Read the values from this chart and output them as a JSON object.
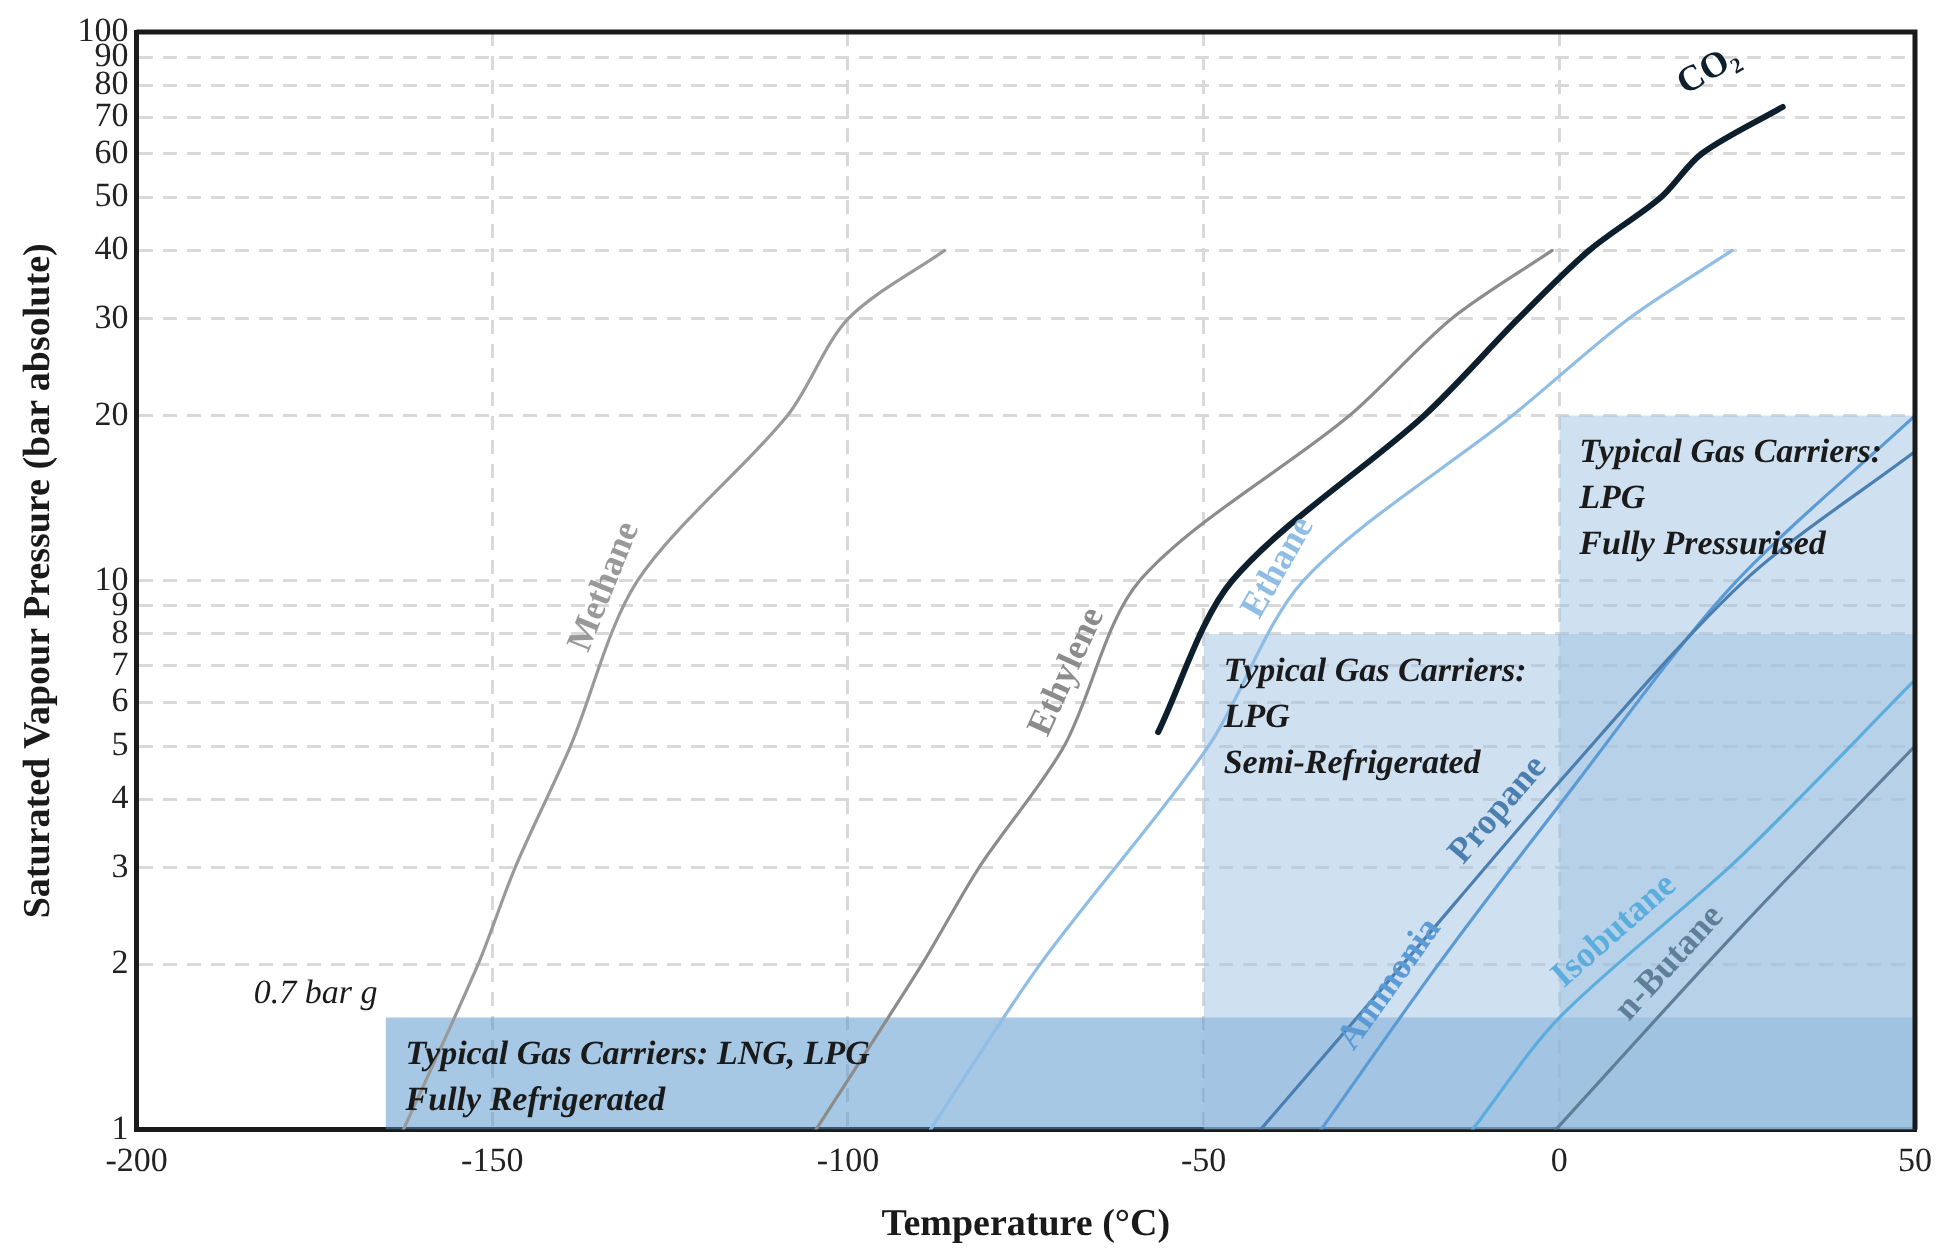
{
  "chart_data": {
    "type": "line",
    "xlabel": "Temperature (°C)",
    "ylabel": "Saturated Vapour Pressure (bar absolute)",
    "xlim": [
      -200,
      50
    ],
    "xticks": [
      -200,
      -150,
      -100,
      -50,
      0,
      50
    ],
    "ylim": [
      1,
      100
    ],
    "yticks": [
      1,
      2,
      3,
      4,
      5,
      6,
      7,
      8,
      9,
      10,
      20,
      30,
      40,
      50,
      60,
      70,
      80,
      90,
      100
    ],
    "log": "y",
    "grid": true,
    "legend": false,
    "marker": "none",
    "line_style": "solid",
    "series": [
      {
        "type": "area",
        "name": "Typical Gas Carriers:\nLPG\nFully Pressurised",
        "color": "#9fc2e2",
        "x": [
          0,
          50
        ],
        "values": [
          20,
          20
        ]
      },
      {
        "type": "area",
        "name": "Typical Gas Carriers:\nLPG\nSemi-Refrigerated",
        "color": "#9fc2e2",
        "x": [
          -50,
          50
        ],
        "values": [
          8,
          8
        ]
      },
      {
        "type": "area",
        "name": "Typical Gas Carriers: LNG, LPG\nFully Refrigerated",
        "color": "#4f92cc",
        "x": [
          -165,
          50
        ],
        "values": [
          1.6,
          1.6
        ]
      },
      {
        "name": "Methane",
        "color": "#999999",
        "x": [
          -162.5,
          -152,
          -146.8,
          -139,
          -129.6,
          -108.5,
          -100,
          -86.4
        ],
        "values": [
          1,
          2,
          3,
          5,
          10,
          20,
          30,
          40
        ]
      },
      {
        "name": "Ethylene",
        "color": "#8c8c8c",
        "x": [
          -104.5,
          -89.6,
          -81.6,
          -69.6,
          -59,
          -29.5,
          -15.2,
          -1
        ],
        "values": [
          1,
          2,
          3,
          5,
          10,
          20,
          30,
          40
        ]
      },
      {
        "name": "Ethane",
        "color": "#8fbde3",
        "x": [
          -88.4,
          -73,
          -49.3,
          -36,
          -6.6,
          9.7,
          24.3
        ],
        "values": [
          1,
          2,
          5,
          10,
          20,
          30,
          40
        ]
      },
      {
        "name": "CO₂",
        "color": "#0d1f2d",
        "x": [
          -56.4,
          -46,
          -19,
          -5.8,
          4.2,
          14.3,
          20,
          31.4
        ],
        "values": [
          5.3,
          10,
          20,
          30,
          40,
          50,
          60,
          73
        ]
      },
      {
        "name": "Propane",
        "color": "#4a7fb0",
        "x": [
          -42,
          -22,
          0,
          26,
          50
        ],
        "values": [
          1,
          2,
          4.3,
          10,
          17.2
        ]
      },
      {
        "name": "Ammonia",
        "color": "#5b9bd5",
        "x": [
          -33.5,
          -17,
          0,
          24,
          50
        ],
        "values": [
          1,
          2,
          3.9,
          9.7,
          20
        ]
      },
      {
        "name": "Isobutane",
        "color": "#5aaddc",
        "x": [
          -12.2,
          0,
          25,
          50
        ],
        "values": [
          1,
          1.6,
          3.1,
          6.6
        ]
      },
      {
        "name": "n-Butane",
        "color": "#5f7f99",
        "x": [
          -0.5,
          25,
          50
        ],
        "values": [
          1,
          2.3,
          5
        ]
      }
    ],
    "annotations": [
      "0.7 bar g"
    ]
  }
}
